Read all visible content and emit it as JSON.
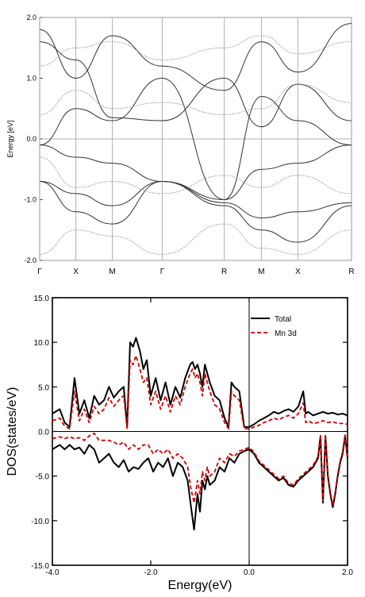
{
  "chart_data": [
    {
      "type": "line",
      "ylabel": "Energy [eV]",
      "ylim": [
        -2.0,
        2.0
      ],
      "yticks": [
        "2.0",
        "1.0",
        "0.0",
        "-1.0",
        "-2.0"
      ],
      "k_points": [
        "Γ",
        "X",
        "M",
        "Γ",
        "R",
        "M",
        "X",
        "R"
      ],
      "k_positions": [
        0,
        0.116,
        0.233,
        0.393,
        0.592,
        0.711,
        0.828,
        1.0
      ],
      "fermi_level": 0.0,
      "grid": "vertical lines at k-points and horizontal at 0",
      "series": [
        {
          "style": "solid",
          "values": [
            [
              0,
              -0.1
            ],
            [
              0.116,
              -0.3
            ],
            [
              0.233,
              -0.4
            ],
            [
              0.393,
              -0.7
            ],
            [
              0.592,
              -1.0
            ],
            [
              0.711,
              -0.5
            ],
            [
              0.828,
              -0.4
            ],
            [
              1.0,
              -0.1
            ]
          ]
        },
        {
          "style": "solid",
          "values": [
            [
              0,
              -0.7
            ],
            [
              0.116,
              -0.9
            ],
            [
              0.233,
              -1.1
            ],
            [
              0.393,
              -0.7
            ],
            [
              0.592,
              -1.05
            ],
            [
              0.711,
              -1.3
            ],
            [
              0.828,
              -1.2
            ],
            [
              1.0,
              -1.05
            ]
          ]
        },
        {
          "style": "solid",
          "values": [
            [
              0,
              -0.7
            ],
            [
              0.116,
              -1.2
            ],
            [
              0.233,
              -1.4
            ],
            [
              0.393,
              -0.7
            ],
            [
              0.592,
              -1.1
            ],
            [
              0.711,
              -1.5
            ],
            [
              0.828,
              -1.7
            ],
            [
              1.0,
              -1.1
            ]
          ]
        },
        {
          "style": "solid",
          "values": [
            [
              0,
              -0.1
            ],
            [
              0.116,
              0.5
            ],
            [
              0.233,
              0.3
            ],
            [
              0.393,
              1.0
            ],
            [
              0.592,
              -1.0
            ],
            [
              0.711,
              0.7
            ],
            [
              0.828,
              0.3
            ],
            [
              1.0,
              -0.1
            ]
          ]
        },
        {
          "style": "solid",
          "values": [
            [
              0,
              1.6
            ],
            [
              0.116,
              1.3
            ],
            [
              0.233,
              0.35
            ],
            [
              0.393,
              0.3
            ],
            [
              0.592,
              1.0
            ],
            [
              0.711,
              0.2
            ],
            [
              0.828,
              0.9
            ],
            [
              1.0,
              0.3
            ]
          ]
        },
        {
          "style": "solid",
          "values": [
            [
              0,
              1.8
            ],
            [
              0.116,
              1.0
            ],
            [
              0.233,
              1.7
            ],
            [
              0.393,
              1.2
            ],
            [
              0.592,
              0.8
            ],
            [
              0.711,
              1.6
            ],
            [
              0.828,
              1.1
            ],
            [
              1.0,
              1.9
            ]
          ]
        },
        {
          "style": "dotted",
          "values": [
            [
              0,
              -1.9
            ],
            [
              0.116,
              -1.5
            ],
            [
              0.233,
              -1.6
            ],
            [
              0.393,
              -1.9
            ],
            [
              0.592,
              -1.4
            ],
            [
              0.711,
              -1.8
            ],
            [
              0.828,
              -1.9
            ],
            [
              1.0,
              -1.5
            ]
          ]
        },
        {
          "style": "dotted",
          "values": [
            [
              0,
              1.2
            ],
            [
              0.116,
              1.5
            ],
            [
              0.233,
              1.6
            ],
            [
              0.393,
              1.3
            ],
            [
              0.592,
              1.5
            ],
            [
              0.711,
              1.7
            ],
            [
              0.828,
              1.4
            ],
            [
              1.0,
              1.6
            ]
          ]
        },
        {
          "style": "dotted",
          "values": [
            [
              0,
              -0.3
            ],
            [
              0.116,
              -0.8
            ],
            [
              0.233,
              -0.7
            ],
            [
              0.393,
              -0.9
            ],
            [
              0.592,
              -0.6
            ],
            [
              0.711,
              -0.8
            ],
            [
              0.828,
              -0.6
            ],
            [
              1.0,
              -0.9
            ]
          ]
        },
        {
          "style": "dotted",
          "values": [
            [
              0,
              0.4
            ],
            [
              0.116,
              0.8
            ],
            [
              0.233,
              0.5
            ],
            [
              0.393,
              0.6
            ],
            [
              0.592,
              0.4
            ],
            [
              0.711,
              0.5
            ],
            [
              0.828,
              0.9
            ],
            [
              1.0,
              0.6
            ]
          ]
        }
      ]
    },
    {
      "type": "line",
      "xlabel": "Energy(eV)",
      "ylabel": "DOS(states/eV)",
      "xlim": [
        -4.0,
        2.0
      ],
      "ylim": [
        -15.0,
        15.0
      ],
      "xticks": [
        "-4.0",
        "-2.0",
        "0.0",
        "2.0"
      ],
      "yticks": [
        "15.0",
        "10.0",
        "5.0",
        "0.0",
        "-5.0",
        "-10.0",
        "-15.0"
      ],
      "legend": "top-right",
      "series": [
        {
          "name": "Total",
          "color": "#000000",
          "style": "solid",
          "x": [
            -4.0,
            -3.85,
            -3.75,
            -3.65,
            -3.55,
            -3.45,
            -3.35,
            -3.25,
            -3.15,
            -3.05,
            -2.95,
            -2.85,
            -2.75,
            -2.65,
            -2.55,
            -2.48,
            -2.42,
            -2.36,
            -2.3,
            -2.22,
            -2.15,
            -2.08,
            -2.0,
            -1.9,
            -1.8,
            -1.7,
            -1.6,
            -1.5,
            -1.4,
            -1.3,
            -1.2,
            -1.15,
            -1.1,
            -1.05,
            -1.0,
            -0.95,
            -0.9,
            -0.8,
            -0.7,
            -0.6,
            -0.5,
            -0.42,
            -0.36,
            -0.3,
            -0.2,
            -0.1,
            0.0,
            0.1,
            0.2,
            0.3,
            0.4,
            0.5,
            0.6,
            0.7,
            0.8,
            0.9,
            1.0,
            1.1,
            1.15,
            1.2,
            1.3,
            1.4,
            1.5,
            1.6,
            1.7,
            1.8,
            1.9,
            2.0
          ],
          "y": [
            2.0,
            2.5,
            1.0,
            0.5,
            6.0,
            2.0,
            3.5,
            1.5,
            4.0,
            3.0,
            3.5,
            5.0,
            3.8,
            4.5,
            5.0,
            0.5,
            10.0,
            9.5,
            10.5,
            9.0,
            7.0,
            8.0,
            4.0,
            6.0,
            3.5,
            5.5,
            3.0,
            5.0,
            3.8,
            6.0,
            7.5,
            7.8,
            7.0,
            7.5,
            6.5,
            5.0,
            7.5,
            5.5,
            4.0,
            3.5,
            1.5,
            0.5,
            5.5,
            5.0,
            4.5,
            0.5,
            0.5,
            0.8,
            1.2,
            1.5,
            1.8,
            2.2,
            2.0,
            2.3,
            2.5,
            2.2,
            2.8,
            4.5,
            2.0,
            2.2,
            1.8,
            2.0,
            2.2,
            2.0,
            2.1,
            1.9,
            2.0,
            1.8
          ]
        },
        {
          "name": "Mn 3d",
          "color": "#cc0000",
          "style": "dashed",
          "x": [
            -4.0,
            -3.85,
            -3.75,
            -3.65,
            -3.55,
            -3.45,
            -3.35,
            -3.25,
            -3.15,
            -3.05,
            -2.95,
            -2.85,
            -2.75,
            -2.65,
            -2.55,
            -2.48,
            -2.42,
            -2.36,
            -2.3,
            -2.22,
            -2.15,
            -2.08,
            -2.0,
            -1.9,
            -1.8,
            -1.7,
            -1.6,
            -1.5,
            -1.4,
            -1.3,
            -1.2,
            -1.15,
            -1.1,
            -1.05,
            -1.0,
            -0.95,
            -0.9,
            -0.8,
            -0.7,
            -0.6,
            -0.5,
            -0.42,
            -0.36,
            -0.3,
            -0.2,
            -0.1,
            0.0,
            0.1,
            0.2,
            0.3,
            0.4,
            0.5,
            0.6,
            0.7,
            0.8,
            0.9,
            1.0,
            1.1,
            1.15,
            1.2,
            1.3,
            1.4,
            1.5,
            1.6,
            1.7,
            1.8,
            1.9,
            2.0
          ],
          "y": [
            1.2,
            1.5,
            0.6,
            0.3,
            4.5,
            1.2,
            2.5,
            1.0,
            2.8,
            2.0,
            2.5,
            3.8,
            2.8,
            3.5,
            4.0,
            0.3,
            8.0,
            7.5,
            8.5,
            7.0,
            5.5,
            6.0,
            3.0,
            4.5,
            2.5,
            4.0,
            2.2,
            4.0,
            3.0,
            5.0,
            6.5,
            7.0,
            6.0,
            6.5,
            5.5,
            4.0,
            6.5,
            4.5,
            3.0,
            2.5,
            1.0,
            0.3,
            4.5,
            4.0,
            3.5,
            0.3,
            0.3,
            0.5,
            0.7,
            1.0,
            1.2,
            1.5,
            1.3,
            1.6,
            1.8,
            1.5,
            2.0,
            3.2,
            1.0,
            1.2,
            0.9,
            1.0,
            1.2,
            1.0,
            1.1,
            0.9,
            0.9,
            0.8
          ]
        },
        {
          "name": "Total",
          "color": "#000000",
          "style": "solid",
          "x": [
            -4.0,
            -3.85,
            -3.75,
            -3.65,
            -3.55,
            -3.45,
            -3.35,
            -3.25,
            -3.15,
            -3.05,
            -2.95,
            -2.85,
            -2.75,
            -2.65,
            -2.55,
            -2.45,
            -2.35,
            -2.25,
            -2.15,
            -2.05,
            -1.95,
            -1.85,
            -1.75,
            -1.65,
            -1.55,
            -1.45,
            -1.35,
            -1.25,
            -1.18,
            -1.12,
            -1.05,
            -1.0,
            -0.95,
            -0.9,
            -0.85,
            -0.8,
            -0.7,
            -0.6,
            -0.5,
            -0.4,
            -0.3,
            -0.2,
            -0.1,
            0.0,
            0.1,
            0.2,
            0.3,
            0.4,
            0.5,
            0.6,
            0.7,
            0.8,
            0.9,
            1.0,
            1.1,
            1.2,
            1.3,
            1.4,
            1.45,
            1.5,
            1.55,
            1.6,
            1.65,
            1.7,
            1.75,
            1.8,
            1.85,
            1.9,
            1.95,
            2.0
          ],
          "y": [
            -2.0,
            -1.5,
            -2.0,
            -1.5,
            -2.0,
            -1.8,
            -2.5,
            -1.5,
            -2.0,
            -3.5,
            -3.0,
            -2.5,
            -3.5,
            -4.0,
            -3.2,
            -4.5,
            -4.0,
            -4.2,
            -3.5,
            -3.0,
            -4.5,
            -3.5,
            -4.0,
            -3.0,
            -5.0,
            -3.5,
            -4.0,
            -5.5,
            -8.5,
            -11.0,
            -7.0,
            -9.0,
            -5.5,
            -6.5,
            -5.0,
            -6.0,
            -5.5,
            -4.0,
            -4.5,
            -3.0,
            -3.5,
            -2.5,
            -2.2,
            -2.0,
            -2.5,
            -3.5,
            -4.0,
            -4.5,
            -5.0,
            -5.5,
            -5.2,
            -6.0,
            -6.2,
            -5.5,
            -5.0,
            -4.5,
            -4.0,
            -3.0,
            -0.5,
            -8.0,
            -0.5,
            -5.0,
            -7.0,
            -8.5,
            -7.0,
            -5.0,
            -3.5,
            -2.5,
            -0.5,
            -3.0
          ]
        },
        {
          "name": "Mn 3d",
          "color": "#cc0000",
          "style": "dashed",
          "x": [
            -4.0,
            -3.85,
            -3.75,
            -3.65,
            -3.55,
            -3.45,
            -3.35,
            -3.25,
            -3.15,
            -3.05,
            -2.95,
            -2.85,
            -2.75,
            -2.65,
            -2.55,
            -2.45,
            -2.35,
            -2.25,
            -2.15,
            -2.05,
            -1.95,
            -1.85,
            -1.75,
            -1.65,
            -1.55,
            -1.45,
            -1.35,
            -1.25,
            -1.18,
            -1.12,
            -1.05,
            -1.0,
            -0.95,
            -0.9,
            -0.85,
            -0.8,
            -0.7,
            -0.6,
            -0.5,
            -0.4,
            -0.3,
            -0.2,
            -0.1,
            0.0,
            0.1,
            0.2,
            0.3,
            0.4,
            0.5,
            0.6,
            0.7,
            0.8,
            0.9,
            1.0,
            1.1,
            1.2,
            1.3,
            1.4,
            1.45,
            1.5,
            1.55,
            1.6,
            1.65,
            1.7,
            1.75,
            1.8,
            1.85,
            1.9,
            1.95,
            2.0
          ],
          "y": [
            -0.8,
            -0.6,
            -0.8,
            -0.6,
            -0.8,
            -0.7,
            -1.0,
            -0.5,
            -0.2,
            -1.0,
            -1.0,
            -1.0,
            -1.2,
            -1.5,
            -1.2,
            -2.0,
            -1.5,
            -2.0,
            -1.5,
            -1.5,
            -2.5,
            -2.0,
            -2.5,
            -2.0,
            -3.0,
            -2.5,
            -3.0,
            -4.0,
            -6.5,
            -8.0,
            -5.5,
            -7.0,
            -4.5,
            -5.5,
            -4.0,
            -5.0,
            -4.5,
            -3.0,
            -3.5,
            -2.5,
            -2.8,
            -2.2,
            -2.0,
            -1.8,
            -2.3,
            -3.3,
            -3.8,
            -4.3,
            -4.8,
            -5.3,
            -5.0,
            -5.8,
            -6.0,
            -5.3,
            -4.8,
            -4.3,
            -3.8,
            -2.8,
            -0.4,
            -7.8,
            -0.4,
            -4.8,
            -6.8,
            -8.3,
            -6.8,
            -4.8,
            -3.3,
            -2.3,
            -0.4,
            -2.8
          ]
        }
      ]
    }
  ]
}
